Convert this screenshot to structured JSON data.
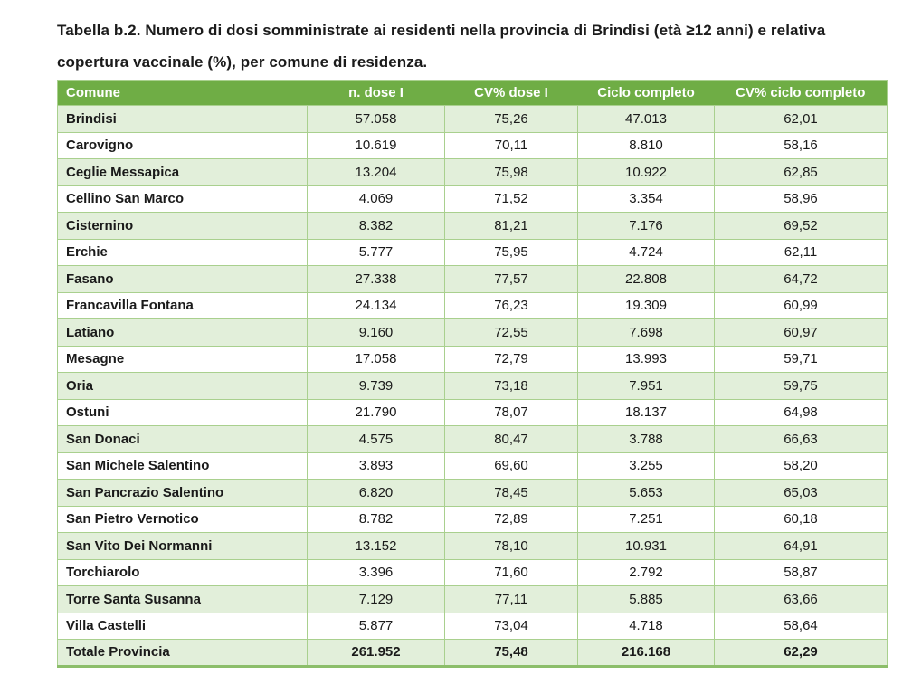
{
  "document": {
    "title": "Tabella b.2. Numero di dosi somministrate ai residenti nella provincia di Brindisi (età ≥12 anni) e relativa copertura vaccinale (%), per comune di residenza."
  },
  "table": {
    "columns": [
      "Comune",
      "n. dose I",
      "CV% dose I",
      "Ciclo completo",
      "CV% ciclo completo"
    ],
    "rows": [
      [
        "Brindisi",
        "57.058",
        "75,26",
        "47.013",
        "62,01"
      ],
      [
        "Carovigno",
        "10.619",
        "70,11",
        "8.810",
        "58,16"
      ],
      [
        "Ceglie Messapica",
        "13.204",
        "75,98",
        "10.922",
        "62,85"
      ],
      [
        "Cellino San Marco",
        "4.069",
        "71,52",
        "3.354",
        "58,96"
      ],
      [
        "Cisternino",
        "8.382",
        "81,21",
        "7.176",
        "69,52"
      ],
      [
        "Erchie",
        "5.777",
        "75,95",
        "4.724",
        "62,11"
      ],
      [
        "Fasano",
        "27.338",
        "77,57",
        "22.808",
        "64,72"
      ],
      [
        "Francavilla Fontana",
        "24.134",
        "76,23",
        "19.309",
        "60,99"
      ],
      [
        "Latiano",
        "9.160",
        "72,55",
        "7.698",
        "60,97"
      ],
      [
        "Mesagne",
        "17.058",
        "72,79",
        "13.993",
        "59,71"
      ],
      [
        "Oria",
        "9.739",
        "73,18",
        "7.951",
        "59,75"
      ],
      [
        "Ostuni",
        "21.790",
        "78,07",
        "18.137",
        "64,98"
      ],
      [
        "San Donaci",
        "4.575",
        "80,47",
        "3.788",
        "66,63"
      ],
      [
        "San Michele Salentino",
        "3.893",
        "69,60",
        "3.255",
        "58,20"
      ],
      [
        "San Pancrazio Salentino",
        "6.820",
        "78,45",
        "5.653",
        "65,03"
      ],
      [
        "San Pietro Vernotico",
        "8.782",
        "72,89",
        "7.251",
        "60,18"
      ],
      [
        "San Vito Dei Normanni",
        "13.152",
        "78,10",
        "10.931",
        "64,91"
      ],
      [
        "Torchiarolo",
        "3.396",
        "71,60",
        "2.792",
        "58,87"
      ],
      [
        "Torre Santa Susanna",
        "7.129",
        "77,11",
        "5.885",
        "63,66"
      ],
      [
        "Villa Castelli",
        "5.877",
        "73,04",
        "4.718",
        "58,64"
      ]
    ],
    "total_row": [
      "Totale Provincia",
      "261.952",
      "75,48",
      "216.168",
      "62,29"
    ]
  },
  "colors": {
    "header_green": "#6FAD45",
    "row_light_green": "#E2EFDA",
    "row_white": "#FFFFFF",
    "border_green": "#A9D08E",
    "outer_border_green": "#8CBE6A",
    "header_text": "#FFFFFF",
    "body_text": "#1A1A1A"
  }
}
